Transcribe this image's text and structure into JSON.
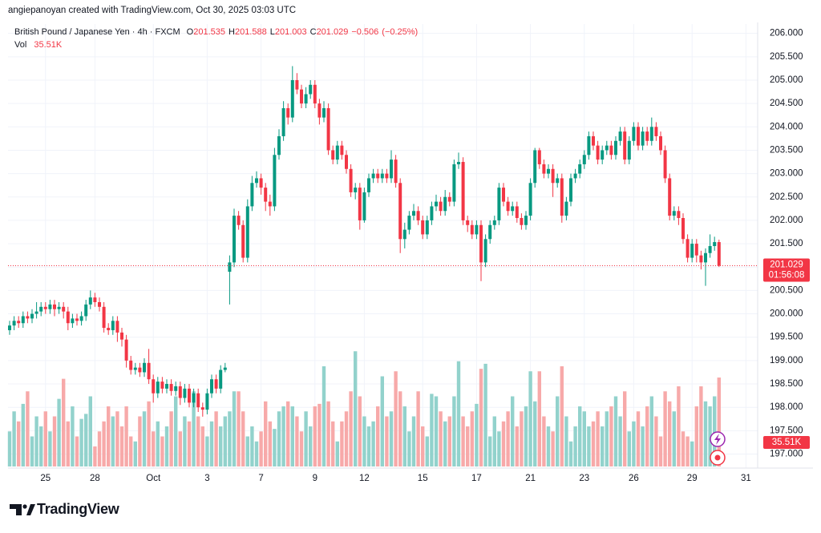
{
  "header": "angiepanoyan created with TradingView.com, Oct 30, 2025 03:03 UTC",
  "logo": "TradingView",
  "chart_data": {
    "type": "candlestick",
    "title": "British Pound / Japanese Yen · 4h · FXCM",
    "legend_labels": {
      "open": "O",
      "high": "H",
      "low": "L",
      "close": "C",
      "volume": "Vol"
    },
    "change": {
      "value": -0.506,
      "label": "−0.506"
    },
    "change_pct": {
      "value": -0.25,
      "label": "(−0.25%)"
    },
    "volume_label": "35.51K",
    "countdown": "01:56:08",
    "up_color": "#089981",
    "down_color": "#f23645",
    "volume_up_color": "#92d2cc",
    "volume_down_color": "#f7a9a9",
    "grid": true,
    "ylim": [
      196.7,
      206.2
    ],
    "vol_ylim": [
      0,
      48
    ],
    "yticks": [
      {
        "value": 197,
        "label": "197.000"
      },
      {
        "value": 197.5,
        "label": "197.500"
      },
      {
        "value": 198,
        "label": "198.000"
      },
      {
        "value": 198.5,
        "label": "198.500"
      },
      {
        "value": 199,
        "label": "199.000"
      },
      {
        "value": 199.5,
        "label": "199.500"
      },
      {
        "value": 200,
        "label": "200.000"
      },
      {
        "value": 200.5,
        "label": "200.500"
      },
      {
        "value": 201,
        "label": "201.000"
      },
      {
        "value": 201.5,
        "label": "201.500"
      },
      {
        "value": 202,
        "label": "202.000"
      },
      {
        "value": 202.5,
        "label": "202.500"
      },
      {
        "value": 203,
        "label": "203.000"
      },
      {
        "value": 203.5,
        "label": "203.500"
      },
      {
        "value": 204,
        "label": "204.000"
      },
      {
        "value": 204.5,
        "label": "204.500"
      },
      {
        "value": 205,
        "label": "205.000"
      },
      {
        "value": 205.5,
        "label": "205.500"
      },
      {
        "value": 206,
        "label": "206.000"
      }
    ],
    "categories": [
      null,
      null,
      null,
      null,
      null,
      null,
      null,
      null,
      "25",
      null,
      null,
      null,
      null,
      null,
      null,
      null,
      null,
      null,
      null,
      "28",
      null,
      null,
      null,
      null,
      null,
      null,
      null,
      null,
      null,
      null,
      null,
      null,
      "Oct",
      null,
      null,
      null,
      null,
      null,
      null,
      null,
      null,
      null,
      null,
      null,
      "3",
      null,
      null,
      null,
      null,
      null,
      null,
      null,
      null,
      null,
      null,
      null,
      "7",
      null,
      null,
      null,
      null,
      null,
      null,
      null,
      null,
      null,
      null,
      null,
      "9",
      null,
      null,
      null,
      null,
      null,
      null,
      null,
      null,
      null,
      null,
      "12",
      null,
      null,
      null,
      null,
      null,
      null,
      null,
      null,
      null,
      null,
      null,
      null,
      "15",
      null,
      null,
      null,
      null,
      null,
      null,
      null,
      null,
      null,
      null,
      null,
      "17",
      null,
      null,
      null,
      null,
      null,
      null,
      null,
      null,
      null,
      null,
      null,
      "21",
      null,
      null,
      null,
      null,
      null,
      null,
      null,
      null,
      null,
      null,
      null,
      "23",
      null,
      null,
      null,
      null,
      null,
      null,
      null,
      null,
      null,
      null,
      "26",
      null,
      null,
      null,
      null,
      null,
      null,
      null,
      null,
      null,
      null,
      null,
      null,
      "29",
      null,
      null,
      null,
      null,
      null,
      null,
      null,
      null,
      null,
      null,
      null,
      "31"
    ],
    "open": [
      199.65,
      199.75,
      199.85,
      199.8,
      199.95,
      199.9,
      200,
      200.05,
      200.15,
      200.1,
      200.2,
      200.1,
      200.15,
      200.05,
      199.8,
      199.9,
      199.85,
      199.95,
      200.2,
      200.35,
      200.25,
      200.15,
      199.7,
      199.65,
      199.85,
      199.6,
      199.45,
      199,
      198.8,
      198.85,
      198.75,
      198.95,
      198.6,
      198.3,
      198.55,
      198.4,
      198.5,
      198.35,
      198.45,
      198.2,
      198.4,
      198.1,
      198.3,
      198,
      197.95,
      198.3,
      198.6,
      198.4,
      198.8,
      200.9,
      201.1,
      202.1,
      201.9,
      201.2,
      202.3,
      202.8,
      202.9,
      202.7,
      202.4,
      202.3,
      203.4,
      203.8,
      204.4,
      204.2,
      205,
      204.8,
      204.5,
      204.7,
      204.9,
      204.5,
      204.2,
      204.4,
      203.5,
      203.3,
      203.6,
      203.4,
      203.1,
      202.6,
      202.7,
      202,
      202.6,
      202.9,
      203,
      202.9,
      203,
      202.9,
      203.3,
      202.8,
      201.6,
      201.8,
      202.1,
      202.2,
      202,
      201.7,
      202,
      202.3,
      202.4,
      202.2,
      202.5,
      202.4,
      203.2,
      203.25,
      202,
      201.9,
      201.7,
      201.9,
      201.1,
      201.6,
      201.9,
      202,
      202.7,
      202.4,
      202.2,
      202.3,
      202.05,
      201.9,
      202.1,
      202.8,
      203.5,
      203.2,
      203,
      203.1,
      202.8,
      202.9,
      202.1,
      202.4,
      202.9,
      203,
      203.2,
      203.4,
      203.8,
      203.6,
      203.3,
      203.5,
      203.6,
      203.4,
      203.7,
      203.9,
      203.3,
      203.7,
      204,
      203.6,
      203.9,
      203.7,
      204,
      203.8,
      203.5,
      202.9,
      202.1,
      202.2,
      202.05,
      201.6,
      201.2,
      201.5,
      201.25,
      201.1,
      201.3,
      201.45,
      201.535,
      null,
      null,
      null,
      null,
      null,
      null
    ],
    "high": [
      199.85,
      199.95,
      199.95,
      200.05,
      200.05,
      200.1,
      200.25,
      200.25,
      200.25,
      200.3,
      200.3,
      200.25,
      200.25,
      200.15,
      200,
      200,
      200.05,
      200.3,
      200.5,
      200.45,
      200.35,
      200.25,
      199.8,
      199.95,
      199.95,
      199.7,
      199.55,
      199.1,
      198.95,
      198.95,
      199.05,
      199.25,
      198.7,
      198.65,
      198.65,
      198.6,
      198.6,
      198.55,
      198.55,
      198.5,
      198.5,
      198.4,
      198.4,
      198.1,
      198.4,
      198.7,
      198.7,
      198.9,
      198.95,
      201.25,
      202.25,
      202.2,
      202,
      202.45,
      202.95,
      203.05,
      203,
      202.8,
      202.55,
      203.55,
      203.95,
      204.55,
      204.5,
      205.3,
      205.15,
      204.9,
      204.85,
      205,
      205,
      204.6,
      204.55,
      204.5,
      203.6,
      203.7,
      203.7,
      203.5,
      203.2,
      202.8,
      202.8,
      202.7,
      203,
      203.1,
      203.1,
      203.1,
      203.1,
      203.5,
      203.4,
      202.9,
      201.95,
      202.2,
      202.35,
      202.3,
      202.1,
      202.1,
      202.4,
      202.55,
      202.5,
      202.65,
      202.6,
      203.3,
      203.45,
      203.35,
      202.1,
      202,
      202,
      202,
      201.7,
      202,
      202.1,
      202.8,
      202.8,
      202.5,
      202.4,
      202.4,
      202.15,
      202.2,
      202.9,
      203.55,
      203.55,
      203.3,
      203.2,
      203.2,
      203,
      203,
      202.5,
      203,
      203.1,
      203.3,
      203.5,
      203.9,
      203.9,
      203.7,
      203.6,
      203.7,
      203.7,
      203.8,
      204,
      204,
      203.8,
      204.1,
      204.1,
      204,
      204,
      204.2,
      204.1,
      203.9,
      203.6,
      203,
      202.3,
      202.3,
      202.15,
      201.7,
      201.6,
      201.6,
      201.35,
      201.4,
      201.7,
      201.65,
      201.588,
      null,
      null,
      null,
      null,
      null,
      null
    ],
    "low": [
      199.55,
      199.65,
      199.7,
      199.7,
      199.8,
      199.8,
      199.9,
      199.95,
      200,
      200,
      199.95,
      200,
      199.9,
      199.65,
      199.7,
      199.75,
      199.75,
      199.85,
      200.1,
      200.15,
      200.05,
      199.6,
      199.55,
      199.55,
      199.4,
      199.3,
      198.85,
      198.7,
      198.7,
      198.65,
      198.65,
      198.5,
      198.1,
      198.2,
      198.3,
      198.3,
      198.25,
      198.25,
      198.05,
      198.1,
      198,
      198,
      197.9,
      197.8,
      197.85,
      198.2,
      198.3,
      198.3,
      198.75,
      200.2,
      201,
      201.8,
      201.1,
      201.1,
      202.2,
      202.7,
      202.55,
      202.2,
      202.1,
      202.2,
      203.3,
      203.7,
      204.05,
      204.1,
      204.7,
      204.4,
      204.4,
      204.6,
      204.4,
      204.05,
      204.1,
      203.4,
      203.2,
      203.2,
      203.3,
      203,
      202.5,
      202.45,
      201.8,
      201.95,
      202.5,
      202.8,
      202.8,
      202.8,
      202.8,
      202.8,
      202.7,
      201.3,
      201.4,
      201.7,
      202,
      201.9,
      201.6,
      201.6,
      201.9,
      202.2,
      202.1,
      202.1,
      202.3,
      202.3,
      203.1,
      201.9,
      201.75,
      201.6,
      201.6,
      200.7,
      201,
      201.5,
      201.8,
      201.9,
      202.3,
      202.1,
      202.1,
      201.95,
      201.8,
      201.8,
      202,
      202.7,
      203.1,
      202.9,
      202.9,
      202.5,
      202.7,
      201.95,
      202,
      202.3,
      202.8,
      202.9,
      203.1,
      203.3,
      203.5,
      203.2,
      203.2,
      203.4,
      203.3,
      203.3,
      203.6,
      203.2,
      203.2,
      203.6,
      203.5,
      203.5,
      203.6,
      203.6,
      203.7,
      203.4,
      202.8,
      202,
      202,
      201.9,
      201.5,
      201.1,
      201.1,
      201.1,
      200.95,
      200.6,
      201.2,
      201.35,
      201.003,
      null,
      null,
      null,
      null,
      null,
      null
    ],
    "close": [
      199.75,
      199.85,
      199.8,
      199.95,
      199.9,
      200,
      200.05,
      200.15,
      200.1,
      200.2,
      200.1,
      200.15,
      200.05,
      199.8,
      199.9,
      199.85,
      199.95,
      200.2,
      200.35,
      200.25,
      200.15,
      199.7,
      199.65,
      199.85,
      199.6,
      199.45,
      199,
      198.8,
      198.85,
      198.75,
      198.95,
      198.6,
      198.3,
      198.55,
      198.4,
      198.5,
      198.35,
      198.45,
      198.2,
      198.4,
      198.1,
      198.3,
      198,
      197.95,
      198.3,
      198.6,
      198.4,
      198.8,
      198.85,
      201.1,
      202.1,
      201.9,
      201.2,
      202.3,
      202.8,
      202.9,
      202.7,
      202.4,
      202.3,
      203.4,
      203.8,
      204.4,
      204.2,
      205,
      204.8,
      204.5,
      204.7,
      204.9,
      204.5,
      204.2,
      204.4,
      203.5,
      203.3,
      203.6,
      203.4,
      203.1,
      202.6,
      202.7,
      202,
      202.6,
      202.9,
      203,
      202.9,
      203,
      202.9,
      203.3,
      202.8,
      201.6,
      201.8,
      202.1,
      202.2,
      202,
      201.7,
      202,
      202.3,
      202.4,
      202.2,
      202.5,
      202.4,
      203.2,
      203.25,
      202,
      201.9,
      201.7,
      201.9,
      201.1,
      201.6,
      201.9,
      202,
      202.7,
      202.4,
      202.2,
      202.3,
      202.05,
      201.9,
      202.1,
      202.8,
      203.5,
      203.2,
      203,
      203.1,
      202.8,
      202.9,
      202.1,
      202.4,
      202.9,
      203,
      203.2,
      203.4,
      203.8,
      203.6,
      203.3,
      203.5,
      203.6,
      203.4,
      203.7,
      203.9,
      203.3,
      203.7,
      204,
      203.6,
      203.9,
      203.7,
      204,
      203.8,
      203.5,
      202.9,
      202.1,
      202.2,
      202.05,
      201.6,
      201.2,
      201.5,
      201.25,
      201.1,
      201.3,
      201.45,
      201.535,
      201.029,
      null,
      null,
      null,
      null,
      null,
      null
    ],
    "volume": [
      14,
      22,
      18,
      25,
      30,
      12,
      20,
      16,
      22,
      14,
      20,
      27,
      35,
      18,
      24,
      12,
      19,
      21,
      28,
      8,
      14,
      18,
      24,
      20,
      22,
      16,
      24,
      12,
      10,
      20,
      22,
      26,
      14,
      18,
      12,
      16,
      22,
      28,
      14,
      20,
      18,
      30,
      20,
      16,
      12,
      18,
      22,
      16,
      20,
      22,
      30,
      30,
      22,
      12,
      16,
      10,
      14,
      26,
      18,
      15,
      22,
      24,
      26,
      24,
      20,
      14,
      22,
      16,
      24,
      25,
      40,
      26,
      18,
      10,
      18,
      22,
      30,
      46,
      28,
      20,
      16,
      18,
      24,
      36,
      20,
      22,
      38,
      30,
      24,
      14,
      20,
      30,
      16,
      12,
      29,
      28,
      22,
      18,
      20,
      28,
      42,
      20,
      16,
      22,
      25,
      39,
      41,
      12,
      20,
      14,
      18,
      22,
      28,
      16,
      22,
      24,
      38,
      26,
      38,
      20,
      16,
      14,
      28,
      40,
      20,
      10,
      16,
      24,
      22,
      16,
      18,
      22,
      16,
      22,
      24,
      28,
      20,
      30,
      14,
      18,
      22,
      16,
      24,
      28,
      20,
      12,
      30,
      26,
      22,
      32,
      14,
      12,
      10,
      24,
      32,
      26,
      24,
      28,
      35.51,
      null,
      null,
      null,
      null,
      null,
      null
    ]
  }
}
